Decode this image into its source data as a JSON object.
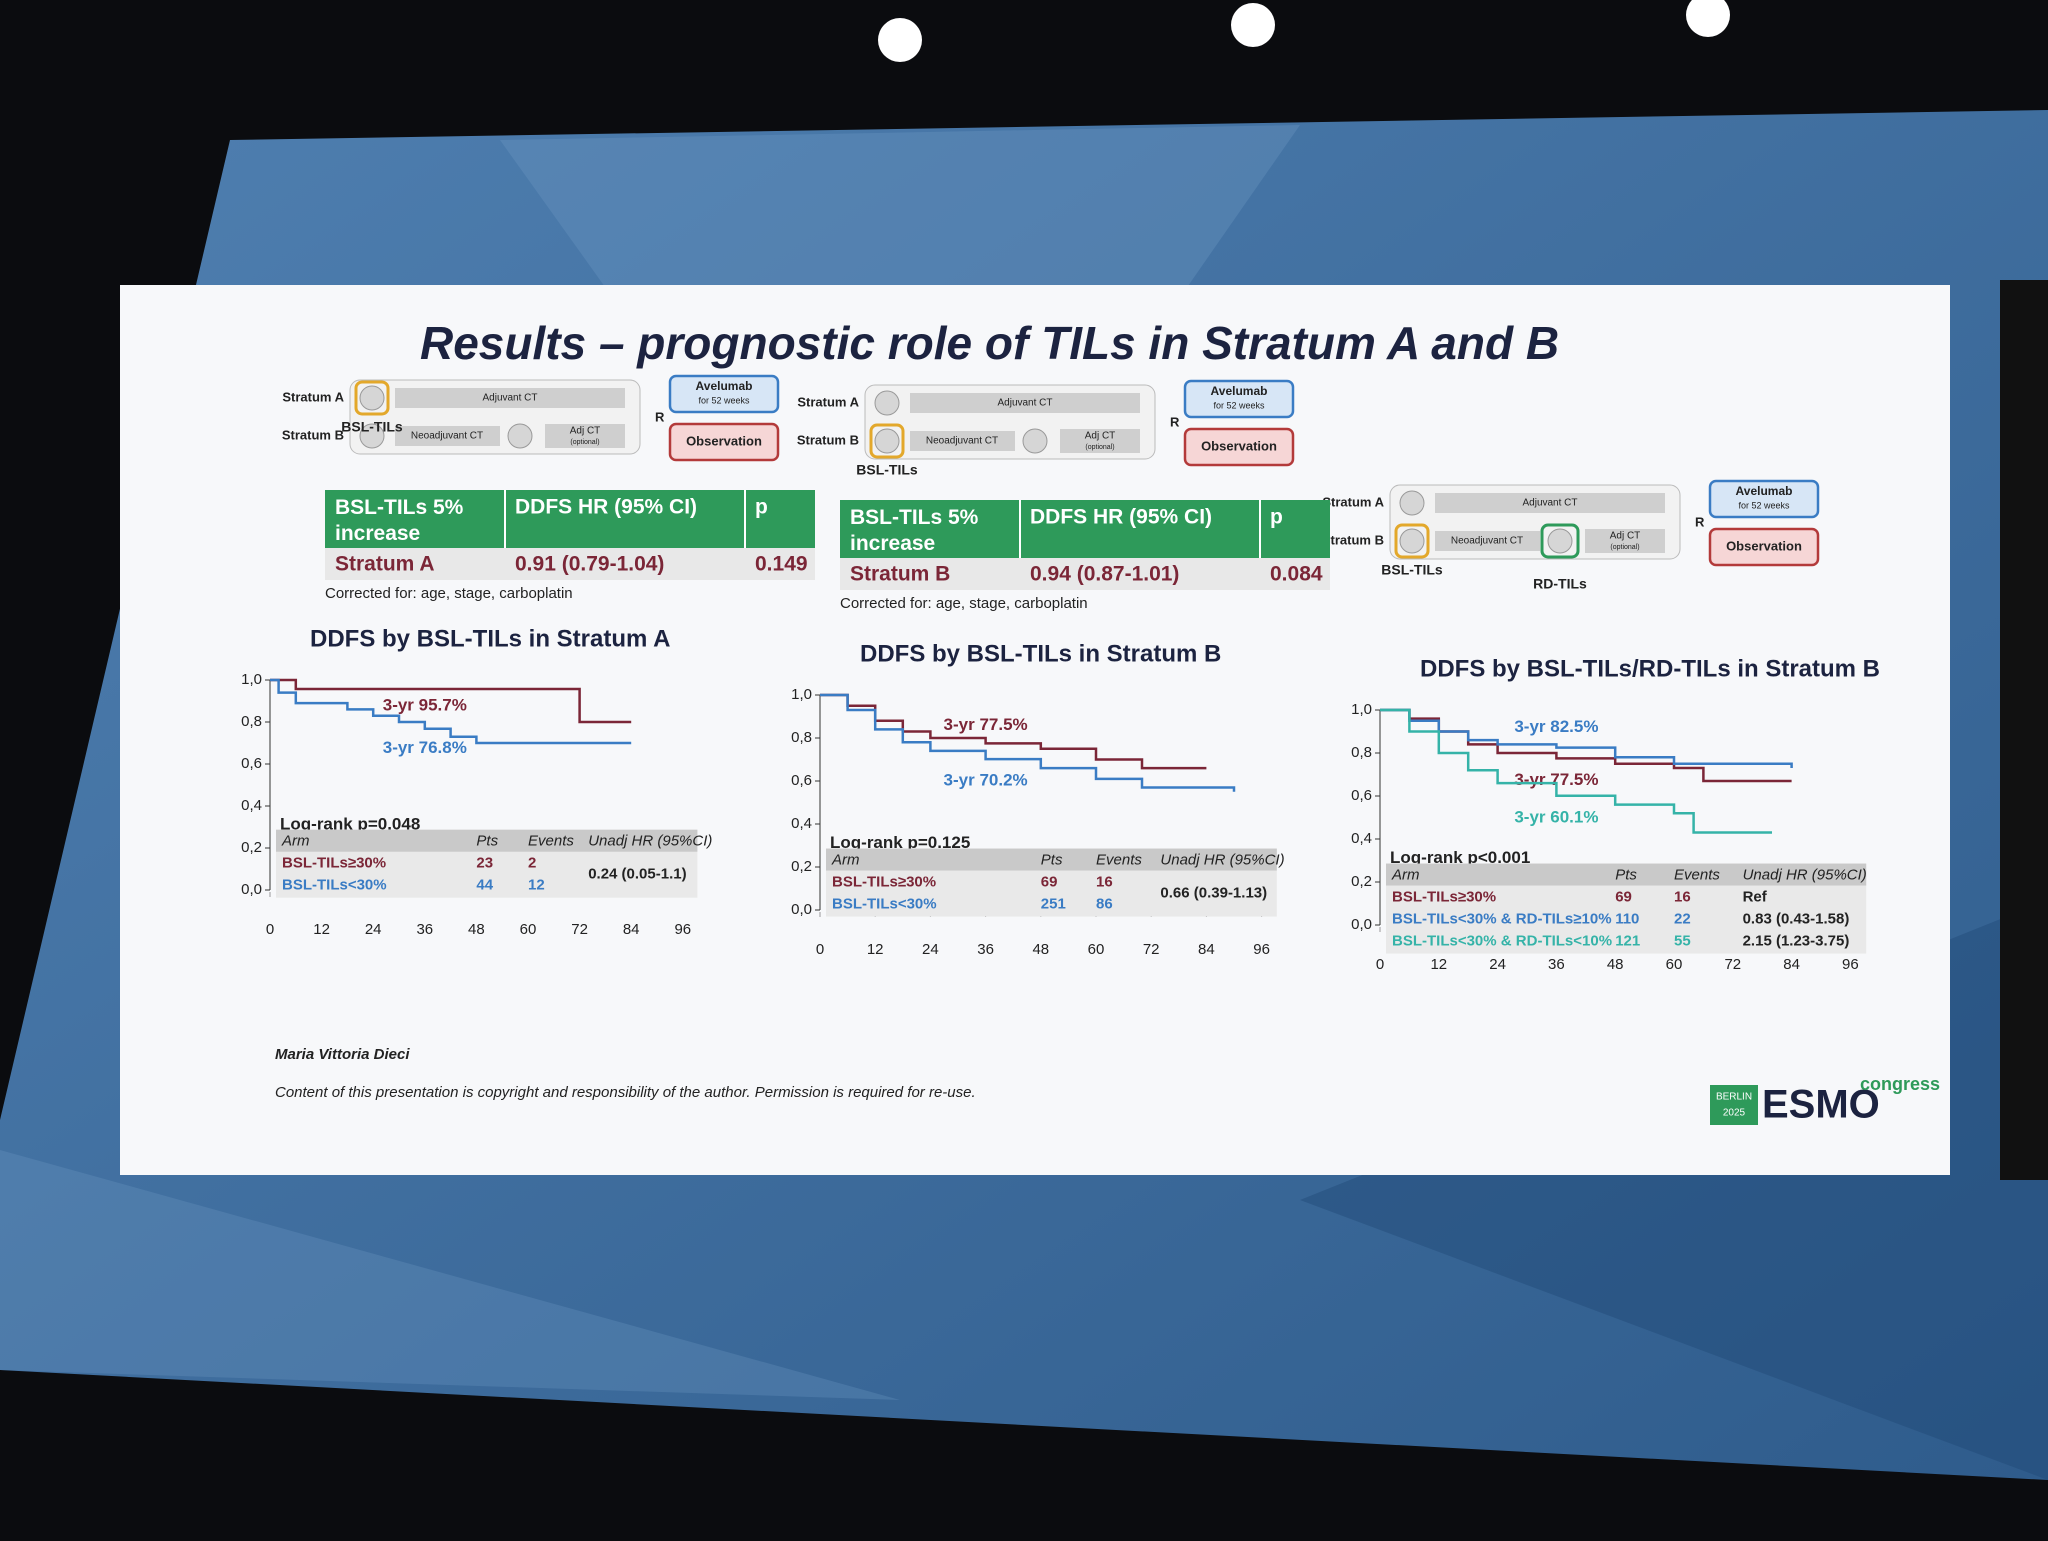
{
  "title": "Results – prognostic role of TILs in Stratum A and B",
  "diagrams": [
    {
      "stratum_a": "Stratum A",
      "stratum_b": "Stratum B",
      "adjuvant": "Adjuvant CT",
      "neoadjuvant": "Neoadjuvant CT",
      "adj_ct": "Adj CT",
      "optional": "(optional)",
      "r": "R",
      "avelumab": "Avelumab",
      "avelumab_duration": "for 52 weeks",
      "observation": "Observation",
      "bsl_label": "BSL-TILs"
    },
    {
      "stratum_a": "Stratum A",
      "stratum_b": "Stratum B",
      "adjuvant": "Adjuvant CT",
      "neoadjuvant": "Neoadjuvant CT",
      "adj_ct": "Adj CT",
      "optional": "(optional)",
      "r": "R",
      "avelumab": "Avelumab",
      "avelumab_duration": "for 52 weeks",
      "observation": "Observation",
      "bsl_label": "BSL-TILs"
    },
    {
      "stratum_a": "Stratum A",
      "stratum_b": "Stratum B",
      "adjuvant": "Adjuvant CT",
      "neoadjuvant": "Neoadjuvant CT",
      "adj_ct": "Adj CT",
      "optional": "(optional)",
      "r": "R",
      "avelumab": "Avelumab",
      "avelumab_duration": "for 52 weeks",
      "observation": "Observation",
      "bsl_label": "BSL-TILs",
      "rd_label": "RD-TILs"
    }
  ],
  "tables": [
    {
      "header": [
        "BSL-TILs 5% increase",
        "DDFS HR (95% CI)",
        "p"
      ],
      "row": [
        "Stratum A",
        "0.91 (0.79-1.04)",
        0.149
      ],
      "note": "Corrected for: age, stage, carboplatin"
    },
    {
      "header": [
        "BSL-TILs 5% increase",
        "DDFS HR (95% CI)",
        "p"
      ],
      "row": [
        "Stratum B",
        "0.94 (0.87-1.01)",
        0.084
      ],
      "note": "Corrected for: age, stage, carboplatin"
    }
  ],
  "chart_data": [
    {
      "type": "line",
      "step": true,
      "title": "DDFS by BSL-TILs in Stratum A",
      "xlim": [
        0,
        100
      ],
      "xticks": [
        0,
        12,
        24,
        36,
        48,
        60,
        72,
        84,
        96
      ],
      "ylim": [
        0,
        1
      ],
      "yticks": [
        {
          "value": 0,
          "label": "0,0"
        },
        {
          "value": 0.2,
          "label": "0,2"
        },
        {
          "value": 0.4,
          "label": "0,4"
        },
        {
          "value": 0.6,
          "label": "0,6"
        },
        {
          "value": 0.8,
          "label": "0,8"
        },
        {
          "value": 1,
          "label": "1,0"
        }
      ],
      "logrank": "Log-rank p=0.048",
      "risk_columns": [
        "Arm",
        "Pts",
        "Events",
        "Unadj HR (95%CI)"
      ],
      "series": [
        {
          "name": "BSL-TILs≥30%",
          "color": "#7b2637",
          "label": "3-yr 95.7%",
          "pts": 23,
          "events": 2,
          "hr": "0.24 (0.05-1.1)",
          "x": [
            0,
            6,
            72,
            84
          ],
          "values": [
            1.0,
            0.957,
            0.8,
            0.8
          ]
        },
        {
          "name": "BSL-TILs<30%",
          "color": "#3a7cc4",
          "label": "3-yr 76.8%",
          "pts": 44,
          "events": 12,
          "x": [
            0,
            2,
            6,
            18,
            24,
            30,
            36,
            42,
            48,
            84
          ],
          "values": [
            1.0,
            0.94,
            0.89,
            0.86,
            0.83,
            0.8,
            0.768,
            0.73,
            0.7,
            0.7
          ]
        }
      ]
    },
    {
      "type": "line",
      "step": true,
      "title": "DDFS by BSL-TILs in Stratum B",
      "xlim": [
        0,
        100
      ],
      "xticks": [
        0,
        12,
        24,
        36,
        48,
        60,
        72,
        84,
        96
      ],
      "ylim": [
        0,
        1
      ],
      "yticks": [
        {
          "value": 0,
          "label": "0,0"
        },
        {
          "value": 0.2,
          "label": "0,2"
        },
        {
          "value": 0.4,
          "label": "0,4"
        },
        {
          "value": 0.6,
          "label": "0,6"
        },
        {
          "value": 0.8,
          "label": "0,8"
        },
        {
          "value": 1,
          "label": "1,0"
        }
      ],
      "logrank": "Log-rank p=0.125",
      "risk_columns": [
        "Arm",
        "Pts",
        "Events",
        "Unadj HR (95%CI)"
      ],
      "series": [
        {
          "name": "BSL-TILs≥30%",
          "color": "#7b2637",
          "label": "3-yr 77.5%",
          "pts": 69,
          "events": 16,
          "hr": "0.66 (0.39-1.13)",
          "x": [
            0,
            6,
            12,
            18,
            24,
            36,
            48,
            60,
            70,
            84
          ],
          "values": [
            1.0,
            0.95,
            0.88,
            0.83,
            0.8,
            0.775,
            0.75,
            0.7,
            0.66,
            0.66
          ]
        },
        {
          "name": "BSL-TILs<30%",
          "color": "#3a7cc4",
          "label": "3-yr 70.2%",
          "pts": 251,
          "events": 86,
          "x": [
            0,
            6,
            12,
            18,
            24,
            36,
            48,
            60,
            70,
            90
          ],
          "values": [
            1.0,
            0.93,
            0.84,
            0.78,
            0.74,
            0.702,
            0.66,
            0.61,
            0.57,
            0.55
          ]
        }
      ]
    },
    {
      "type": "line",
      "step": true,
      "title": "DDFS by BSL-TILs/RD-TILs in Stratum B",
      "xlim": [
        0,
        100
      ],
      "xticks": [
        0,
        12,
        24,
        36,
        48,
        60,
        72,
        84,
        96
      ],
      "ylim": [
        0,
        1
      ],
      "yticks": [
        {
          "value": 0,
          "label": "0,0"
        },
        {
          "value": 0.2,
          "label": "0,2"
        },
        {
          "value": 0.4,
          "label": "0,4"
        },
        {
          "value": 0.6,
          "label": "0,6"
        },
        {
          "value": 0.8,
          "label": "0,8"
        },
        {
          "value": 1,
          "label": "1,0"
        }
      ],
      "logrank": "Log-rank p<0.001",
      "risk_columns": [
        "Arm",
        "Pts",
        "Events",
        "Unadj HR (95%CI)"
      ],
      "series": [
        {
          "name": "BSL-TILs≥30%",
          "color": "#7b2637",
          "label": "3-yr 77.5%",
          "pts": 69,
          "events": 16,
          "hr": "Ref",
          "x": [
            0,
            6,
            12,
            18,
            24,
            36,
            48,
            60,
            66,
            84
          ],
          "values": [
            1.0,
            0.96,
            0.9,
            0.84,
            0.8,
            0.775,
            0.75,
            0.73,
            0.67,
            0.67
          ]
        },
        {
          "name": "BSL-TILs<30% & RD-TILs≥10%",
          "color": "#3a7cc4",
          "label": "3-yr 82.5%",
          "pts": 110,
          "events": 22,
          "hr": "0.83 (0.43-1.58)",
          "x": [
            0,
            6,
            12,
            18,
            24,
            36,
            48,
            60,
            84
          ],
          "values": [
            1.0,
            0.95,
            0.9,
            0.86,
            0.84,
            0.825,
            0.78,
            0.75,
            0.73
          ]
        },
        {
          "name": "BSL-TILs<30% & RD-TILs<10%",
          "color": "#35b3a8",
          "label": "3-yr 60.1%",
          "pts": 121,
          "events": 55,
          "hr": "2.15 (1.23-3.75)",
          "x": [
            0,
            6,
            12,
            18,
            24,
            36,
            48,
            60,
            64,
            80
          ],
          "values": [
            1.0,
            0.9,
            0.8,
            0.72,
            0.66,
            0.601,
            0.56,
            0.52,
            0.43,
            0.43
          ]
        }
      ]
    }
  ],
  "footer": {
    "author": "Maria Vittoria Dieci",
    "copyright": "Content of this presentation is copyright and responsibility of the author. Permission is required for re-use."
  },
  "logo": {
    "city": "BERLIN",
    "year": "2025",
    "brand": "ESMO",
    "suffix": "congress"
  }
}
